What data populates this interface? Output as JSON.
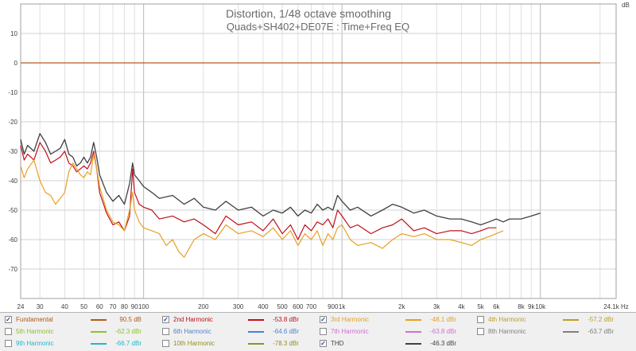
{
  "chart_data": {
    "type": "line",
    "title": "Distortion, 1/48 octave smoothing",
    "subtitle": "Quads+SH402+DE07E :  Time+Freq EQ",
    "ylabel": "dB",
    "xlabel_unit": "24.1k Hz",
    "x_scale": "log",
    "xlim": [
      24,
      24100
    ],
    "ylim": [
      -80,
      20
    ],
    "grid": true,
    "y_ticks": [
      10,
      0,
      -10,
      -20,
      -30,
      -40,
      -50,
      -60,
      -70
    ],
    "x_ticks": [
      {
        "v": 24,
        "t": "24"
      },
      {
        "v": 30,
        "t": "30"
      },
      {
        "v": 40,
        "t": "40"
      },
      {
        "v": 50,
        "t": "50"
      },
      {
        "v": 60,
        "t": "60"
      },
      {
        "v": 70,
        "t": "70"
      },
      {
        "v": 80,
        "t": "80"
      },
      {
        "v": 90,
        "t": "90"
      },
      {
        "v": 100,
        "t": "100"
      },
      {
        "v": 200,
        "t": "200"
      },
      {
        "v": 300,
        "t": "300"
      },
      {
        "v": 400,
        "t": "400"
      },
      {
        "v": 500,
        "t": "500"
      },
      {
        "v": 600,
        "t": "600"
      },
      {
        "v": 700,
        "t": "700"
      },
      {
        "v": 900,
        "t": "900"
      },
      {
        "v": 1000,
        "t": "1k"
      },
      {
        "v": 2000,
        "t": "2k"
      },
      {
        "v": 3000,
        "t": "3k"
      },
      {
        "v": 4000,
        "t": "4k"
      },
      {
        "v": 5000,
        "t": "5k"
      },
      {
        "v": 6000,
        "t": "6k"
      },
      {
        "v": 8000,
        "t": "8k"
      },
      {
        "v": 9000,
        "t": "9k"
      },
      {
        "v": 10000,
        "t": "10k"
      },
      {
        "v": 24100,
        "t": "24.1k Hz"
      }
    ],
    "series": [
      {
        "key": "fundamental",
        "color": "#b35a1f",
        "width": 1.3,
        "x": [
          24,
          20000
        ],
        "y": [
          0,
          0
        ]
      },
      {
        "key": "thd",
        "color": "#404040",
        "width": 1.3,
        "x": [
          24,
          25,
          26,
          28,
          30,
          32,
          34,
          36,
          38,
          40,
          42,
          44,
          46,
          48,
          50,
          52,
          54,
          56,
          58,
          60,
          65,
          70,
          75,
          80,
          85,
          88,
          90,
          95,
          100,
          110,
          120,
          140,
          160,
          180,
          200,
          230,
          260,
          300,
          350,
          400,
          450,
          500,
          550,
          600,
          650,
          700,
          750,
          800,
          850,
          900,
          950,
          1000,
          1100,
          1200,
          1400,
          1600,
          1800,
          2000,
          2300,
          2600,
          3000,
          3500,
          4000,
          4500,
          5000,
          5500,
          6000,
          6500,
          7000,
          8000,
          9000,
          10000
        ],
        "y": [
          -26,
          -31,
          -28,
          -30,
          -24,
          -27,
          -31,
          -30,
          -29,
          -26,
          -31,
          -32,
          -35,
          -34,
          -32,
          -34,
          -32,
          -27,
          -32,
          -38,
          -44,
          -47,
          -45,
          -48,
          -41,
          -34,
          -38,
          -40,
          -42,
          -44,
          -46,
          -45,
          -48,
          -46,
          -49,
          -50,
          -47,
          -50,
          -49,
          -52,
          -50,
          -51,
          -49,
          -52,
          -50,
          -51,
          -48,
          -50,
          -49,
          -50,
          -45,
          -47,
          -50,
          -49,
          -52,
          -50,
          -48,
          -49,
          -51,
          -50,
          -52,
          -53,
          -53,
          -54,
          -55,
          -54,
          -53,
          -54,
          -53,
          -53,
          -52,
          -51
        ]
      },
      {
        "key": "h2",
        "color": "#c0101a",
        "width": 1.2,
        "x": [
          24,
          25,
          26,
          28,
          30,
          32,
          34,
          36,
          38,
          40,
          42,
          44,
          46,
          48,
          50,
          52,
          54,
          56,
          58,
          60,
          65,
          70,
          75,
          80,
          85,
          88,
          90,
          95,
          100,
          110,
          120,
          140,
          160,
          180,
          200,
          230,
          260,
          300,
          350,
          400,
          450,
          500,
          550,
          600,
          650,
          700,
          750,
          800,
          850,
          900,
          950,
          1000,
          1100,
          1200,
          1400,
          1600,
          1800,
          2000,
          2300,
          2600,
          3000,
          3500,
          4000,
          4500,
          5000,
          5500,
          6000
        ],
        "y": [
          -28,
          -33,
          -31,
          -33,
          -27,
          -30,
          -34,
          -33,
          -32,
          -30,
          -34,
          -35,
          -37,
          -36,
          -35,
          -36,
          -34,
          -30,
          -36,
          -44,
          -51,
          -55,
          -54,
          -57,
          -52,
          -36,
          -44,
          -48,
          -49,
          -50,
          -53,
          -52,
          -54,
          -53,
          -55,
          -58,
          -52,
          -55,
          -54,
          -57,
          -53,
          -58,
          -55,
          -60,
          -55,
          -57,
          -54,
          -55,
          -53,
          -56,
          -50,
          -52,
          -56,
          -55,
          -58,
          -56,
          -55,
          -53,
          -57,
          -56,
          -58,
          -57,
          -57,
          -58,
          -57,
          -56,
          -56
        ]
      },
      {
        "key": "h3",
        "color": "#e8a020",
        "width": 1.2,
        "x": [
          24,
          25,
          26,
          28,
          30,
          32,
          34,
          36,
          38,
          40,
          42,
          44,
          46,
          48,
          50,
          52,
          54,
          56,
          58,
          60,
          65,
          70,
          75,
          80,
          85,
          88,
          90,
          95,
          100,
          110,
          120,
          130,
          140,
          150,
          160,
          180,
          200,
          230,
          260,
          300,
          350,
          400,
          450,
          500,
          550,
          600,
          650,
          700,
          750,
          800,
          850,
          900,
          950,
          1000,
          1100,
          1200,
          1400,
          1600,
          1800,
          2000,
          2300,
          2600,
          3000,
          3500,
          4000,
          4500,
          5000,
          5500,
          6000,
          6500
        ],
        "y": [
          -35,
          -39,
          -36,
          -33,
          -40,
          -44,
          -45,
          -48,
          -46,
          -44,
          -37,
          -34,
          -36,
          -38,
          -39,
          -37,
          -38,
          -31,
          -36,
          -42,
          -50,
          -54,
          -55,
          -57,
          -50,
          -44,
          -50,
          -54,
          -56,
          -57,
          -58,
          -62,
          -60,
          -64,
          -66,
          -60,
          -58,
          -60,
          -55,
          -58,
          -57,
          -59,
          -56,
          -60,
          -57,
          -62,
          -58,
          -60,
          -57,
          -62,
          -58,
          -60,
          -56,
          -55,
          -60,
          -62,
          -61,
          -63,
          -60,
          -58,
          -59,
          -58,
          -60,
          -60,
          -61,
          -62,
          -60,
          -59,
          -58,
          -57
        ]
      }
    ]
  },
  "legend": [
    {
      "name": "Fundamental",
      "value": "90.5 dB",
      "color": "#b35a1f",
      "checked": true
    },
    {
      "name": "2nd Harmonic",
      "value": "-53.8 dBr",
      "color": "#c0101a",
      "checked": true
    },
    {
      "name": "3rd Harmonic",
      "value": "-48.1 dBr",
      "color": "#e8a020",
      "checked": true
    },
    {
      "name": "4th Harmonic",
      "value": "-57.2 dBr",
      "color": "#b8a028",
      "checked": false
    },
    {
      "name": "5th Harmonic",
      "value": "-62.3 dBr",
      "color": "#90c030",
      "checked": false
    },
    {
      "name": "6th Harmonic",
      "value": "-64.6 dBr",
      "color": "#5080c8",
      "checked": false
    },
    {
      "name": "7th Harmonic",
      "value": "-63.8 dBr",
      "color": "#d070d0",
      "checked": false
    },
    {
      "name": "8th Harmonic",
      "value": "-63.7 dBr",
      "color": "#808080",
      "checked": false
    },
    {
      "name": "9th Harmonic",
      "value": "-66.7 dBr",
      "color": "#20b8c8",
      "checked": false
    },
    {
      "name": "10th Harmonic",
      "value": "-78.3 dBr",
      "color": "#909020",
      "checked": false
    },
    {
      "name": "THD",
      "value": "-46.3 dBr",
      "color": "#404040",
      "checked": true
    }
  ]
}
